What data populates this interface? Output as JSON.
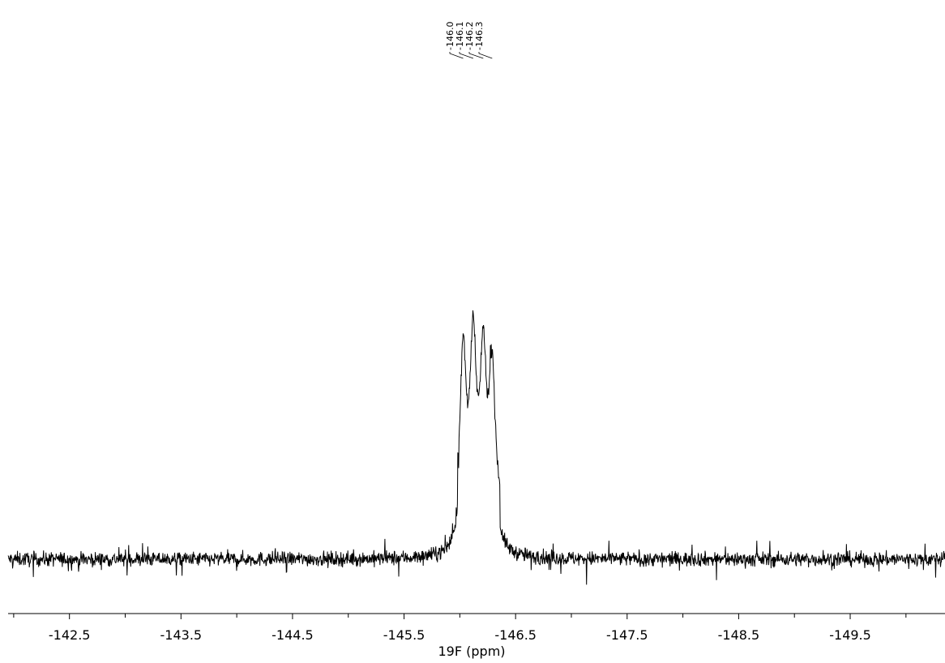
{
  "chart_data": {
    "type": "line",
    "title": "",
    "xlabel": "19F (ppm)",
    "ylabel": "",
    "x_reversed": true,
    "xlim": [
      -141.95,
      -150.35
    ],
    "grid": false,
    "legend": "none",
    "line_color": "#000000",
    "x_ticks": [
      {
        "value": -142.5,
        "label": "-142.5"
      },
      {
        "value": -143.5,
        "label": "-143.5"
      },
      {
        "value": -144.5,
        "label": "-144.5"
      },
      {
        "value": -145.5,
        "label": "-145.5"
      },
      {
        "value": -146.5,
        "label": "-146.5"
      },
      {
        "value": -147.5,
        "label": "-147.5"
      },
      {
        "value": -148.5,
        "label": "-148.5"
      },
      {
        "value": -149.5,
        "label": "-149.5"
      }
    ],
    "peak_labels": [
      {
        "ppm": -146.03,
        "label": "-146.0",
        "height": 0.79
      },
      {
        "ppm": -146.12,
        "label": "-146.1",
        "height": 0.82
      },
      {
        "ppm": -146.21,
        "label": "-146.2",
        "height": 0.75
      },
      {
        "ppm": -146.29,
        "label": "-146.3",
        "height": 0.71
      }
    ],
    "baseline": 0.0,
    "noise_level": 0.06
  }
}
